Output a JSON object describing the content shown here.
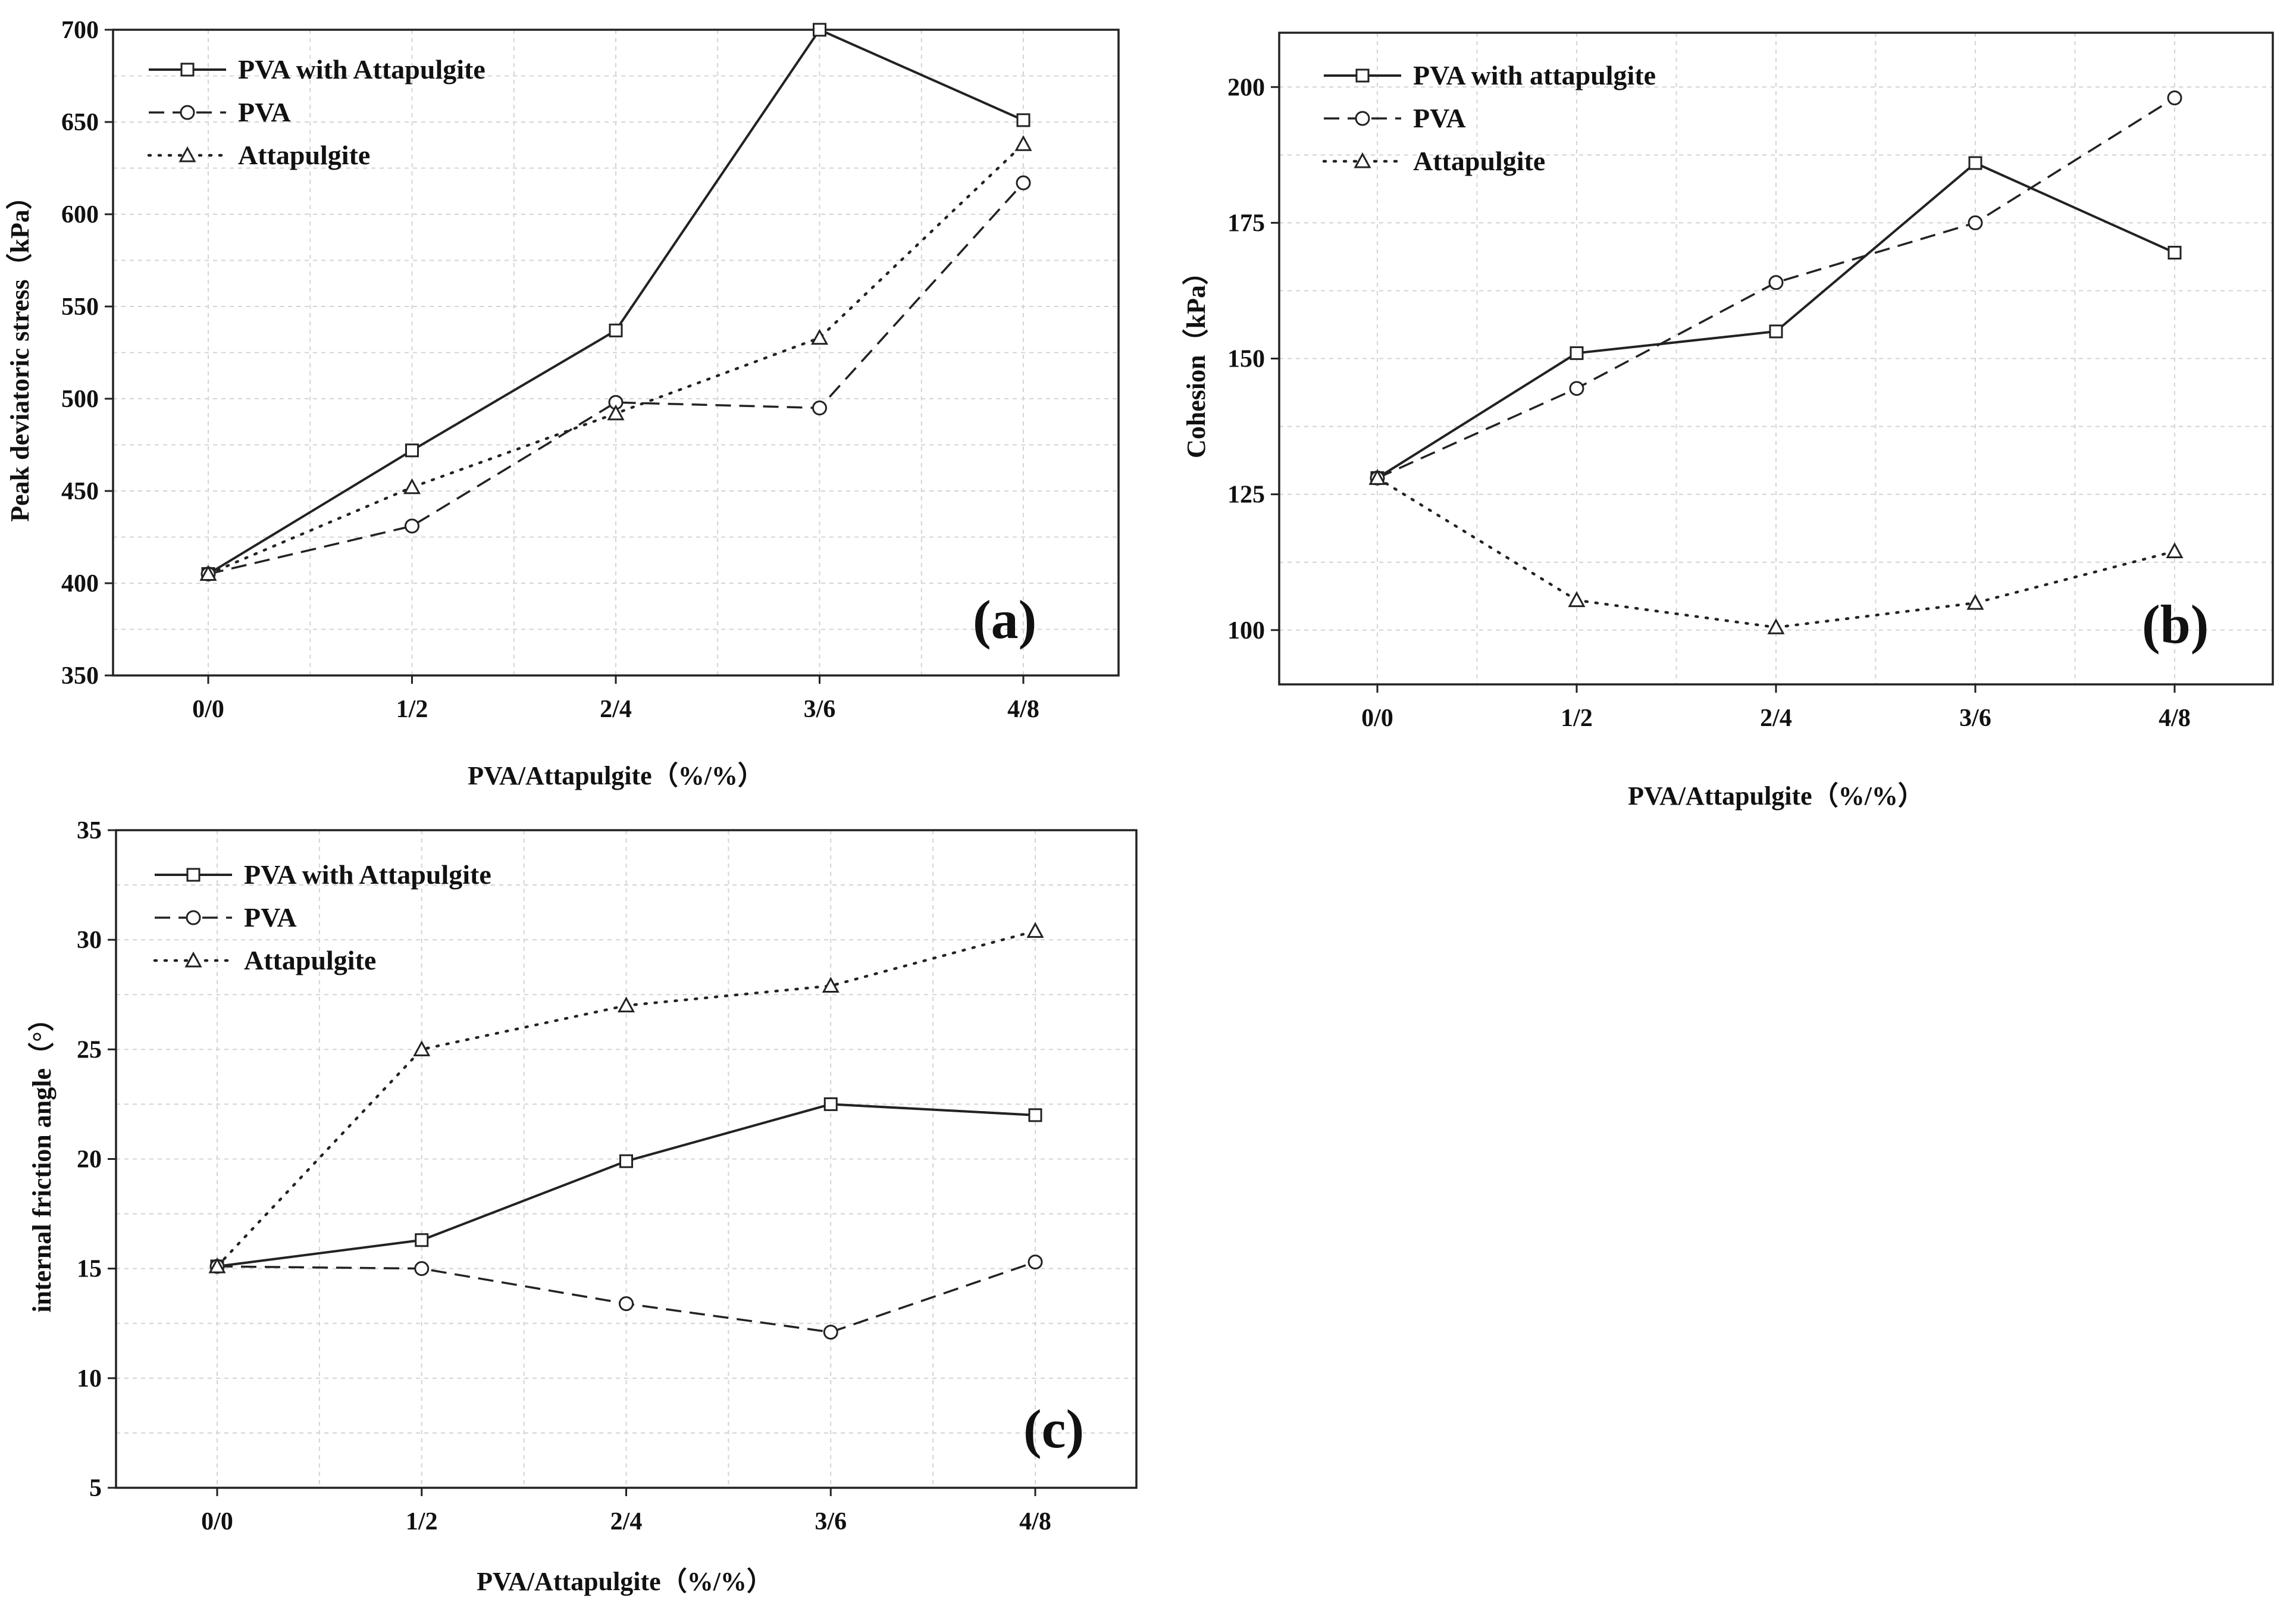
{
  "chart_data": [
    {
      "type": "line",
      "panel_label": "(a)",
      "categories": [
        "0/0",
        "1/2",
        "2/4",
        "3/6",
        "4/8"
      ],
      "xlabel": "PVA/Attapulgite（%/%）",
      "ylabel": "Peak deviatoric stress（kPa）",
      "ylim": [
        350,
        700
      ],
      "yticks": [
        350,
        400,
        450,
        500,
        550,
        600,
        650,
        700
      ],
      "grid": true,
      "legend_position": "top-left",
      "series": [
        {
          "name": "PVA with Attapulgite",
          "style": "solid",
          "marker": "square",
          "values": [
            405,
            472,
            537,
            700,
            651
          ]
        },
        {
          "name": "PVA",
          "style": "dashed",
          "marker": "circle",
          "values": [
            405,
            431,
            498,
            495,
            617
          ]
        },
        {
          "name": "Attapulgite",
          "style": "dotted",
          "marker": "triangle",
          "values": [
            405,
            452,
            492,
            533,
            638
          ]
        }
      ]
    },
    {
      "type": "line",
      "panel_label": "(b)",
      "categories": [
        "0/0",
        "1/2",
        "2/4",
        "3/6",
        "4/8"
      ],
      "xlabel": "PVA/Attapulgite（%/%）",
      "ylabel": "Cohesion（kPa）",
      "ylim": [
        90,
        210
      ],
      "yticks": [
        100,
        125,
        150,
        175,
        200
      ],
      "grid": true,
      "legend_position": "top-left",
      "series": [
        {
          "name": "PVA with attapulgite",
          "style": "solid",
          "marker": "square",
          "values": [
            128,
            151,
            155,
            186,
            169.5
          ]
        },
        {
          "name": "PVA",
          "style": "dashed",
          "marker": "circle",
          "values": [
            128,
            144.5,
            164,
            175,
            198
          ]
        },
        {
          "name": "Attapulgite",
          "style": "dotted",
          "marker": "triangle",
          "values": [
            128,
            105.5,
            100.5,
            105,
            114.5
          ]
        }
      ]
    },
    {
      "type": "line",
      "panel_label": "(c)",
      "categories": [
        "0/0",
        "1/2",
        "2/4",
        "3/6",
        "4/8"
      ],
      "xlabel": "PVA/Attapulgite（%/%）",
      "ylabel": "internal friction angle（°）",
      "ylim": [
        5,
        35
      ],
      "yticks": [
        5,
        10,
        15,
        20,
        25,
        30,
        35
      ],
      "grid": true,
      "legend_position": "top-left",
      "series": [
        {
          "name": "PVA with Attapulgite",
          "style": "solid",
          "marker": "square",
          "values": [
            15.1,
            16.3,
            19.9,
            22.5,
            22
          ]
        },
        {
          "name": "PVA",
          "style": "dashed",
          "marker": "circle",
          "values": [
            15.1,
            15,
            13.4,
            12.1,
            15.3
          ]
        },
        {
          "name": "Attapulgite",
          "style": "dotted",
          "marker": "triangle",
          "values": [
            15.1,
            25,
            27,
            27.9,
            30.4
          ]
        }
      ]
    }
  ]
}
